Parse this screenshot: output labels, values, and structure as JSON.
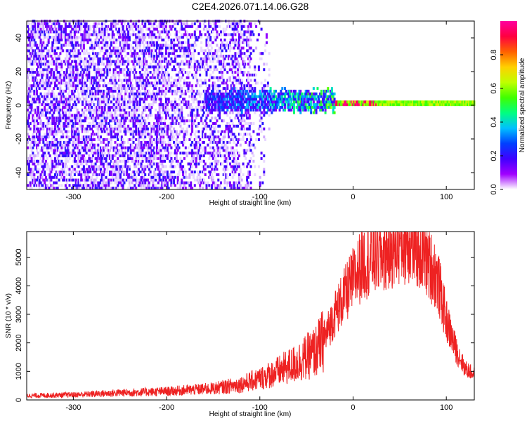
{
  "title": "C2E4.2026.071.14.06.G28",
  "chart_data": [
    {
      "type": "heatmap",
      "xlabel": "Height of straight line (km)",
      "ylabel": "Frequency (Hz)",
      "xlim": [
        -350,
        130
      ],
      "ylim": [
        -50,
        50
      ],
      "xticks": [
        "-300",
        "-200",
        "-100",
        "0",
        "100"
      ],
      "xtick_values": [
        -300,
        -200,
        -100,
        0,
        100
      ],
      "yticks": [
        "-40",
        "-20",
        "0",
        "20",
        "40"
      ],
      "ytick_values": [
        -40,
        -20,
        0,
        20,
        40
      ],
      "colorbar": {
        "label": "Normalized spectral amplitude",
        "range": [
          0,
          1
        ],
        "ticks": [
          "0.0",
          "0.2",
          "0.4",
          "0.6",
          "0.8"
        ],
        "tick_values": [
          0.0,
          0.2,
          0.4,
          0.6,
          0.8
        ],
        "colormap": [
          "#ffffff",
          "#a000ff",
          "#4000ff",
          "#0040ff",
          "#00c0ff",
          "#00ff80",
          "#40ff00",
          "#c0ff00",
          "#ffd000",
          "#ff6000",
          "#ff0040",
          "#ff00a0"
        ]
      },
      "features": [
        {
          "region": "noise",
          "x_range": [
            -350,
            -110
          ],
          "freq_range": [
            -50,
            50
          ],
          "amplitude": 0.15
        },
        {
          "region": "onset",
          "x_range": [
            -160,
            -20
          ],
          "freq_center": 2,
          "freq_halfwidth": 8,
          "amplitude": 0.35
        },
        {
          "region": "narrow-band signal",
          "x_range": [
            -20,
            130
          ],
          "freq_center": 0.5,
          "freq_halfwidth": 2,
          "amplitude": 0.6
        },
        {
          "region": "peak",
          "x_range": [
            -25,
            25
          ],
          "freq_center": 0,
          "amplitude": 0.9
        }
      ]
    },
    {
      "type": "line",
      "xlabel": "Height of straight line (km)",
      "ylabel": "SNR (10 * v/v)",
      "xlim": [
        -350,
        130
      ],
      "ylim": [
        0,
        5900
      ],
      "xticks": [
        "-300",
        "-200",
        "-100",
        "0",
        "100"
      ],
      "xtick_values": [
        -300,
        -200,
        -100,
        0,
        100
      ],
      "yticks": [
        "0",
        "1000",
        "2000",
        "3000",
        "4000",
        "5000"
      ],
      "ytick_values": [
        0,
        1000,
        2000,
        3000,
        4000,
        5000
      ],
      "series": [
        {
          "name": "SNR",
          "color": "#ee2222",
          "x": [
            -350,
            -300,
            -250,
            -200,
            -150,
            -120,
            -100,
            -80,
            -60,
            -40,
            -30,
            -20,
            -10,
            0,
            10,
            20,
            30,
            40,
            50,
            60,
            70,
            80,
            90,
            100,
            110,
            120,
            130
          ],
          "y": [
            150,
            180,
            250,
            300,
            400,
            550,
            750,
            1000,
            1300,
            1700,
            2200,
            3000,
            3600,
            4200,
            4800,
            5000,
            5100,
            5300,
            5500,
            5600,
            5300,
            4900,
            4300,
            2800,
            1800,
            1100,
            900
          ]
        }
      ]
    }
  ]
}
